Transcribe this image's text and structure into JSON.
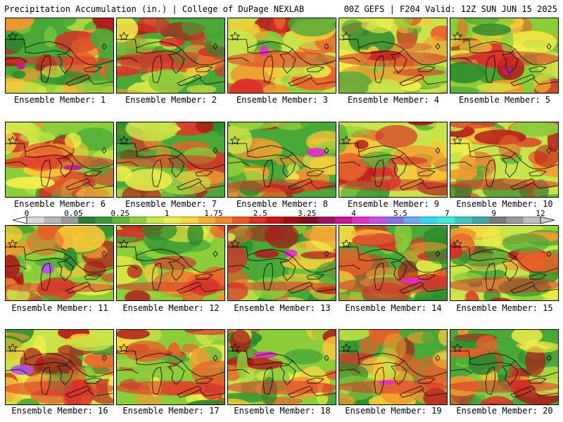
{
  "header": {
    "left": "Precipitation Accumulation (in.) | College of DuPage NEXLAB",
    "right": "00Z GEFS | F204 Valid: 12Z SUN JUN 15 2025"
  },
  "panels": [
    {
      "label": "Ensemble Member: 1"
    },
    {
      "label": "Ensemble Member: 2"
    },
    {
      "label": "Ensemble Member: 3"
    },
    {
      "label": "Ensemble Member: 4"
    },
    {
      "label": "Ensemble Member: 5"
    },
    {
      "label": "Ensemble Member: 6"
    },
    {
      "label": "Ensemble Member: 7"
    },
    {
      "label": "Ensemble Member: 8"
    },
    {
      "label": "Ensemble Member: 9"
    },
    {
      "label": "Ensemble Member: 10"
    },
    {
      "label": "Ensemble Member: 11"
    },
    {
      "label": "Ensemble Member: 12"
    },
    {
      "label": "Ensemble Member: 13"
    },
    {
      "label": "Ensemble Member: 14"
    },
    {
      "label": "Ensemble Member: 15"
    },
    {
      "label": "Ensemble Member: 16"
    },
    {
      "label": "Ensemble Member: 17"
    },
    {
      "label": "Ensemble Member: 18"
    },
    {
      "label": "Ensemble Member: 19"
    },
    {
      "label": "Ensemble Member: 20"
    }
  ],
  "colorbar": {
    "tick_labels": [
      "0",
      "0.05",
      "0.25",
      "1",
      "1.75",
      "2.5",
      "3.25",
      "4",
      "5.5",
      "7",
      "9",
      "12"
    ],
    "colors": [
      "#d8d8d8",
      "#b8b8b8",
      "#9a9a9a",
      "#2e7d32",
      "#3a9a3a",
      "#5cb82e",
      "#8cd23a",
      "#c8e84a",
      "#f0f04a",
      "#f8d838",
      "#f8b030",
      "#f08828",
      "#e85a20",
      "#e03020",
      "#c81818",
      "#a01010",
      "#801020",
      "#a01060",
      "#c81890",
      "#e030c8",
      "#c850e8",
      "#8a70f0",
      "#70a8f8",
      "#38d8f0",
      "#38f0e0",
      "#38c8c0",
      "#40a8a0",
      "#7a7a7a",
      "#9a9a9a",
      "#c0c0c0"
    ]
  }
}
